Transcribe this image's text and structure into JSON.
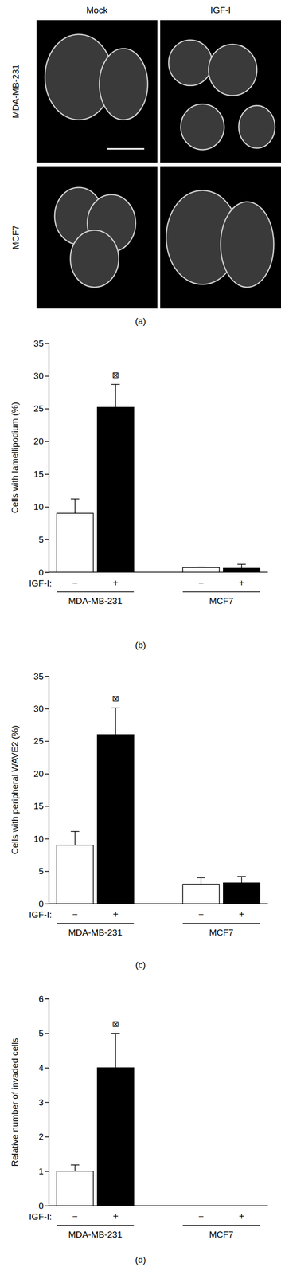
{
  "images": {
    "panel_label": "(a)",
    "columns": [
      "Mock",
      "IGF-I"
    ],
    "rows": [
      "MDA-MB-231",
      "MCF7"
    ]
  },
  "chart_data": [
    {
      "type": "bar",
      "panel_label": "(b)",
      "y_label": "Cells with lamellipodium (%)",
      "x_label": "IGF-I:",
      "categories": [
        "−",
        "+",
        "−",
        "+"
      ],
      "groups": [
        "MDA-MB-231",
        "MCF7"
      ],
      "values": [
        9,
        25.2,
        0.7,
        0.6
      ],
      "errors": [
        2.2,
        3.5,
        0.1,
        0.6
      ],
      "significance": [
        null,
        "⊠",
        null,
        null
      ],
      "colors": [
        "#ffffff",
        "#000000",
        "#ffffff",
        "#000000"
      ],
      "ylim": [
        0,
        35
      ],
      "yticks": [
        0,
        5,
        10,
        15,
        20,
        25,
        30,
        35
      ]
    },
    {
      "type": "bar",
      "panel_label": "(c)",
      "y_label": "Cells with peripheral WAVE2 (%)",
      "x_label": "IGF-I:",
      "categories": [
        "−",
        "+",
        "−",
        "+"
      ],
      "groups": [
        "MDA-MB-231",
        "MCF7"
      ],
      "values": [
        9,
        26,
        3,
        3.2
      ],
      "errors": [
        2.1,
        4.1,
        1,
        1
      ],
      "significance": [
        null,
        "⊠",
        null,
        null
      ],
      "colors": [
        "#ffffff",
        "#000000",
        "#ffffff",
        "#000000"
      ],
      "ylim": [
        0,
        35
      ],
      "yticks": [
        0,
        5,
        10,
        15,
        20,
        25,
        30,
        35
      ]
    },
    {
      "type": "bar",
      "panel_label": "(d)",
      "y_label": "Relative number of invaded cells",
      "x_label": "IGF-I:",
      "categories": [
        "−",
        "+",
        "−",
        "+"
      ],
      "groups": [
        "MDA-MB-231",
        "MCF7"
      ],
      "values": [
        1,
        4,
        0,
        0
      ],
      "errors": [
        0.18,
        1,
        0,
        0
      ],
      "significance": [
        null,
        "⊠",
        null,
        null
      ],
      "colors": [
        "#ffffff",
        "#000000",
        "#ffffff",
        "#000000"
      ],
      "ylim": [
        0,
        6
      ],
      "yticks": [
        0,
        1,
        2,
        3,
        4,
        5,
        6
      ]
    }
  ]
}
